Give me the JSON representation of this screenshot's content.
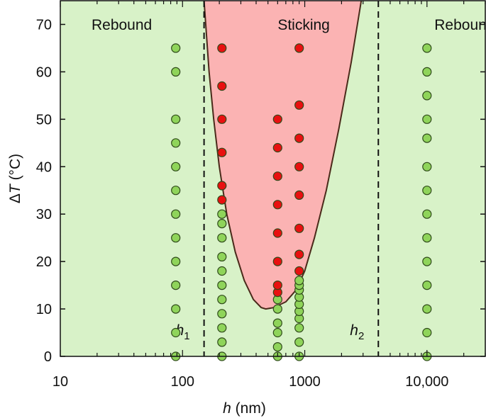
{
  "chart_data": {
    "type": "scatter",
    "xlabel_var": "h",
    "xlabel_unit": " (nm)",
    "ylabel_var": "T",
    "ylabel_prefix": "Δ",
    "ylabel_unit": " (°C)",
    "xscale": "log",
    "xlim": [
      10,
      30000
    ],
    "ylim": [
      0,
      75
    ],
    "x_ticks": [
      10,
      100,
      1000,
      10000
    ],
    "x_tick_labels": [
      "10",
      "100",
      "1000",
      "10,000"
    ],
    "y_ticks": [
      0,
      10,
      20,
      30,
      40,
      50,
      60,
      70
    ],
    "y_tick_labels": [
      "0",
      "10",
      "20",
      "30",
      "40",
      "50",
      "60",
      "70"
    ],
    "colors": {
      "rebound_bg": "#d8f2c8",
      "sticking_bg": "#fbb3b3",
      "boundary": "#4a2a1a",
      "rebound_point": "#8fd45a",
      "sticking_point": "#e81010",
      "point_edge": "#2f4a1a"
    },
    "regions": [
      {
        "label": "Rebound",
        "x": 18
      },
      {
        "label": "Sticking",
        "x": 600
      },
      {
        "label": "Rebound",
        "x": 11500
      }
    ],
    "thresholds": [
      {
        "name": "h",
        "sub": "1",
        "x": 150
      },
      {
        "name": "h",
        "sub": "2",
        "x": 4000
      }
    ],
    "boundary_curve": [
      [
        150,
        75
      ],
      [
        165,
        60
      ],
      [
        180,
        50
      ],
      [
        200,
        40
      ],
      [
        230,
        30
      ],
      [
        270,
        22
      ],
      [
        320,
        16
      ],
      [
        380,
        12
      ],
      [
        440,
        10.3
      ],
      [
        480,
        10
      ],
      [
        560,
        10.3
      ],
      [
        700,
        11.5
      ],
      [
        850,
        14
      ],
      [
        1000,
        18
      ],
      [
        1200,
        25
      ],
      [
        1500,
        35
      ],
      [
        1900,
        48
      ],
      [
        2400,
        62
      ],
      [
        2900,
        75
      ]
    ],
    "series": [
      {
        "name": "Rebound",
        "points": [
          [
            88,
            0
          ],
          [
            88,
            5
          ],
          [
            88,
            10
          ],
          [
            88,
            15
          ],
          [
            88,
            20
          ],
          [
            88,
            25
          ],
          [
            88,
            30
          ],
          [
            88,
            35
          ],
          [
            88,
            40
          ],
          [
            88,
            45
          ],
          [
            88,
            50
          ],
          [
            88,
            60
          ],
          [
            88,
            65
          ],
          [
            210,
            0
          ],
          [
            210,
            3
          ],
          [
            210,
            6
          ],
          [
            210,
            9
          ],
          [
            210,
            12
          ],
          [
            210,
            15
          ],
          [
            210,
            18
          ],
          [
            210,
            21
          ],
          [
            210,
            25
          ],
          [
            210,
            28
          ],
          [
            210,
            30
          ],
          [
            600,
            0
          ],
          [
            600,
            2
          ],
          [
            600,
            5
          ],
          [
            600,
            7
          ],
          [
            600,
            10
          ],
          [
            600,
            12
          ],
          [
            900,
            0
          ],
          [
            900,
            3
          ],
          [
            900,
            6
          ],
          [
            900,
            8
          ],
          [
            900,
            9.5
          ],
          [
            900,
            11
          ],
          [
            900,
            12.5
          ],
          [
            900,
            14
          ],
          [
            900,
            15
          ],
          [
            900,
            16
          ],
          [
            10000,
            0
          ],
          [
            10000,
            5
          ],
          [
            10000,
            10
          ],
          [
            10000,
            15
          ],
          [
            10000,
            20
          ],
          [
            10000,
            25
          ],
          [
            10000,
            30
          ],
          [
            10000,
            35
          ],
          [
            10000,
            40
          ],
          [
            10000,
            46
          ],
          [
            10000,
            50
          ],
          [
            10000,
            55
          ],
          [
            10000,
            60
          ],
          [
            10000,
            65
          ]
        ]
      },
      {
        "name": "Sticking",
        "points": [
          [
            210,
            33
          ],
          [
            210,
            36
          ],
          [
            210,
            43
          ],
          [
            210,
            50
          ],
          [
            210,
            57
          ],
          [
            210,
            65
          ],
          [
            600,
            13.5
          ],
          [
            600,
            15
          ],
          [
            600,
            20
          ],
          [
            600,
            26
          ],
          [
            600,
            32
          ],
          [
            600,
            38
          ],
          [
            600,
            44
          ],
          [
            600,
            50
          ],
          [
            900,
            18
          ],
          [
            900,
            21.5
          ],
          [
            900,
            27
          ],
          [
            900,
            34
          ],
          [
            900,
            40
          ],
          [
            900,
            46
          ],
          [
            900,
            53
          ],
          [
            900,
            65
          ]
        ]
      }
    ]
  }
}
